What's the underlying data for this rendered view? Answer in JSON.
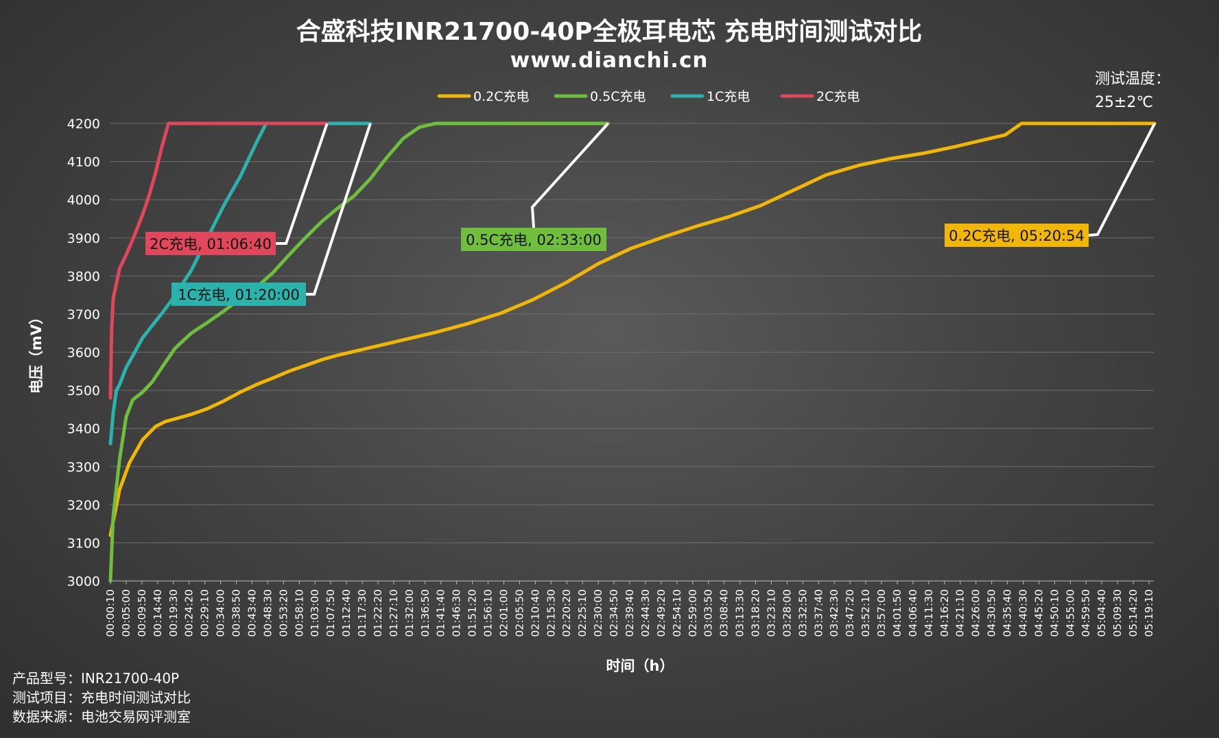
{
  "chart_data": {
    "type": "line",
    "title": "合盛科技INR21700-40P全极耳电芯 充电时间测试对比",
    "subtitle": "www.dianchi.cn",
    "xlabel": "时间（h）",
    "ylabel": "电压（mV）",
    "ylim": [
      3000,
      4200
    ],
    "yticks": [
      3000,
      3100,
      3200,
      3300,
      3400,
      3500,
      3600,
      3700,
      3800,
      3900,
      4000,
      4100,
      4200
    ],
    "grid": true,
    "legend_position": "top-center",
    "x_tick_labels": [
      "00:00:10",
      "00:05:00",
      "00:09:50",
      "00:14:40",
      "00:19:30",
      "00:24:20",
      "00:29:10",
      "00:34:00",
      "00:38:50",
      "00:43:40",
      "00:48:30",
      "00:53:20",
      "00:58:10",
      "01:03:00",
      "01:07:50",
      "01:12:40",
      "01:17:30",
      "01:22:20",
      "01:27:10",
      "01:32:00",
      "01:36:50",
      "01:41:40",
      "01:46:30",
      "01:51:20",
      "01:56:10",
      "02:01:00",
      "02:05:50",
      "02:10:40",
      "02:15:30",
      "02:20:20",
      "02:25:10",
      "02:30:00",
      "02:34:50",
      "02:39:40",
      "02:44:30",
      "02:49:20",
      "02:54:10",
      "02:59:00",
      "03:03:50",
      "03:08:40",
      "03:13:30",
      "03:18:20",
      "03:23:10",
      "03:28:00",
      "03:32:50",
      "03:37:40",
      "03:42:30",
      "03:47:20",
      "03:52:10",
      "03:57:00",
      "04:01:50",
      "04:06:40",
      "04:11:30",
      "04:16:20",
      "04:21:10",
      "04:26:00",
      "04:30:50",
      "04:35:40",
      "04:40:30",
      "04:45:20",
      "04:50:10",
      "04:55:00",
      "04:59:50",
      "05:04:40",
      "05:09:30",
      "05:14:20",
      "05:19:10"
    ],
    "x_unit": "minutes",
    "series": [
      {
        "name": "0.2C充电",
        "color": "#f2b705",
        "x": [
          0.17,
          3,
          6,
          10,
          14,
          17,
          20,
          25,
          30,
          35,
          40,
          45,
          50,
          55,
          60,
          65,
          70,
          75,
          80,
          85,
          90,
          95,
          100,
          110,
          120,
          130,
          140,
          150,
          160,
          170,
          180,
          190,
          200,
          210,
          220,
          230,
          240,
          250,
          260,
          270,
          275,
          280,
          290,
          300,
          305,
          310,
          315,
          320.9
        ],
        "y": [
          3120,
          3240,
          3310,
          3370,
          3405,
          3418,
          3425,
          3437,
          3452,
          3472,
          3495,
          3515,
          3532,
          3550,
          3565,
          3580,
          3592,
          3602,
          3612,
          3622,
          3632,
          3642,
          3652,
          3675,
          3702,
          3738,
          3782,
          3832,
          3872,
          3902,
          3930,
          3955,
          3985,
          4025,
          4065,
          4090,
          4108,
          4122,
          4140,
          4160,
          4170,
          4200,
          4200,
          4200,
          4200,
          4200,
          4200,
          4200
        ]
      },
      {
        "name": "0.5C充电",
        "color": "#6fbe3c",
        "x": [
          0.17,
          1,
          3,
          5,
          7,
          10,
          13,
          16,
          20,
          25,
          30,
          35,
          40,
          45,
          50,
          55,
          60,
          65,
          70,
          75,
          80,
          85,
          90,
          95,
          100,
          103,
          107,
          110,
          115,
          120,
          130,
          140,
          153
        ],
        "y": [
          3000,
          3170,
          3320,
          3430,
          3475,
          3495,
          3522,
          3560,
          3610,
          3650,
          3678,
          3708,
          3740,
          3770,
          3808,
          3855,
          3900,
          3942,
          3978,
          4010,
          4055,
          4110,
          4160,
          4190,
          4200,
          4200,
          4200,
          4200,
          4200,
          4200,
          4200,
          4200,
          4200
        ]
      },
      {
        "name": "1C充电",
        "color": "#2ab3ad",
        "x": [
          0.17,
          1,
          2,
          3,
          5,
          7,
          10,
          13,
          16,
          20,
          25,
          30,
          35,
          40,
          45,
          48,
          50,
          52,
          55,
          60,
          65,
          70,
          75,
          80
        ],
        "y": [
          3360,
          3440,
          3500,
          3515,
          3560,
          3590,
          3637,
          3670,
          3702,
          3748,
          3815,
          3900,
          3985,
          4060,
          4150,
          4200,
          4200,
          4200,
          4200,
          4200,
          4200,
          4200,
          4200,
          4200
        ]
      },
      {
        "name": "2C充电",
        "color": "#e0475a",
        "x": [
          0.17,
          0.5,
          1,
          2,
          3,
          5,
          7,
          10,
          12,
          14,
          16,
          18,
          19.5,
          22,
          30,
          40,
          50,
          60,
          66.7
        ],
        "y": [
          3480,
          3650,
          3740,
          3780,
          3820,
          3855,
          3895,
          3960,
          4010,
          4070,
          4140,
          4200,
          4200,
          4200,
          4200,
          4200,
          4200,
          4200,
          4200
        ]
      }
    ],
    "annotations": [
      {
        "text": "2C充电, 01:06:40",
        "color": "#e0475a"
      },
      {
        "text": "1C充电, 01:20:00",
        "color": "#2ab3ad"
      },
      {
        "text": "0.5C充电, 02:33:00",
        "color": "#6fbe3c"
      },
      {
        "text": "0.2C充电, 05:20:54",
        "color": "#f2b705"
      }
    ]
  },
  "note": {
    "line1": "测试温度：",
    "line2": "25±2℃"
  },
  "footer": {
    "model": "产品型号：INR21700-40P",
    "item": "测试项目：充电时间测试对比",
    "source": "数据来源：电池交易网评测室"
  }
}
